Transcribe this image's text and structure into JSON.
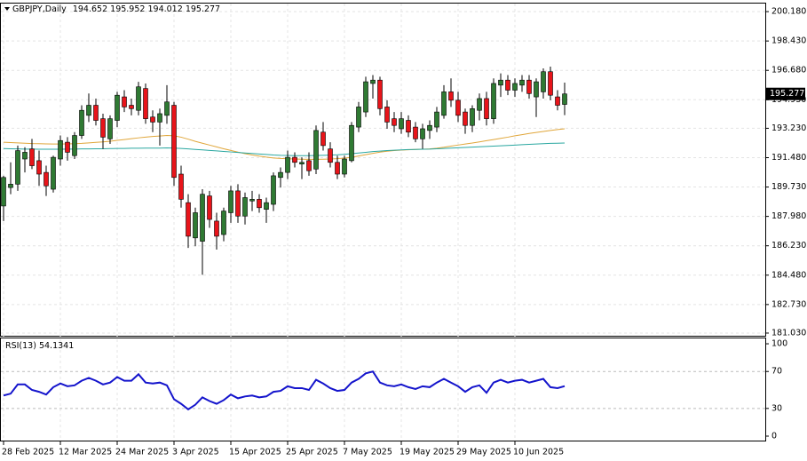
{
  "chart_data": [
    {
      "type": "candlestick",
      "title": "GBPJPY,Daily",
      "categories": [
        "28 Feb 2025",
        null,
        null,
        null,
        null,
        null,
        null,
        null,
        "12 Mar 2025",
        null,
        null,
        null,
        null,
        null,
        null,
        null,
        "24 Mar 2025",
        null,
        null,
        null,
        null,
        null,
        null,
        null,
        "3 Apr 2025",
        null,
        null,
        null,
        null,
        null,
        null,
        null,
        "15 Apr 2025",
        null,
        null,
        null,
        null,
        null,
        null,
        null,
        "25 Apr 2025",
        null,
        null,
        null,
        null,
        null,
        null,
        null,
        "7 May 2025",
        null,
        null,
        null,
        null,
        null,
        null,
        null,
        "19 May 2025",
        null,
        null,
        null,
        null,
        null,
        null,
        null,
        "29 May 2025",
        null,
        null,
        null,
        null,
        null,
        null,
        null,
        "10 Jun 2025",
        null,
        null,
        null,
        null,
        null,
        null,
        null
      ],
      "ohlc": {
        "open": [
          188.6,
          189.7,
          189.9,
          191.4,
          192.0,
          191.3,
          190.6,
          189.6,
          191.4,
          192.4,
          191.6,
          192.8,
          194.0,
          194.6,
          193.8,
          192.6,
          193.7,
          195.1,
          194.6,
          194.3,
          195.6,
          193.9,
          193.6,
          194.0,
          194.6,
          190.5,
          188.8,
          186.7,
          186.5,
          189.2,
          187.7,
          186.9,
          188.2,
          189.5,
          188.0,
          188.9,
          189.0,
          188.4,
          188.7,
          190.3,
          190.6,
          191.5,
          191.1,
          191.3,
          190.8,
          193.0,
          192.0,
          191.2,
          190.5,
          191.3,
          193.3,
          194.2,
          195.9,
          196.1,
          194.5,
          193.8,
          193.2,
          193.7,
          193.3,
          192.6,
          193.1,
          193.3,
          194.0,
          195.4,
          194.9,
          194.2,
          193.4,
          194.3,
          195.0,
          193.8,
          195.8,
          196.1,
          195.5,
          195.8,
          196.1,
          195.1,
          195.4,
          196.6,
          195.1,
          194.652
        ],
        "high": [
          190.4,
          191.2,
          192.2,
          192.1,
          192.6,
          191.9,
          191.0,
          191.6,
          192.8,
          192.7,
          193.0,
          194.6,
          195.3,
          195.0,
          194.1,
          194.0,
          195.4,
          195.5,
          195.0,
          196.0,
          195.9,
          194.3,
          194.4,
          195.8,
          194.8,
          191.0,
          189.3,
          188.5,
          189.6,
          189.5,
          188.2,
          188.5,
          189.8,
          189.9,
          189.4,
          189.5,
          189.3,
          189.1,
          190.6,
          190.9,
          191.9,
          191.8,
          191.5,
          191.8,
          193.4,
          193.6,
          192.4,
          191.6,
          191.6,
          193.6,
          194.8,
          196.3,
          196.4,
          196.3,
          194.9,
          194.2,
          194.2,
          194.0,
          193.6,
          193.5,
          193.7,
          194.5,
          195.8,
          196.2,
          195.4,
          194.4,
          194.6,
          195.3,
          195.4,
          196.2,
          196.5,
          196.4,
          196.2,
          196.4,
          196.4,
          196.2,
          196.8,
          196.9,
          195.5,
          195.952
        ],
        "low": [
          187.7,
          189.3,
          189.5,
          190.6,
          190.8,
          189.8,
          189.2,
          189.4,
          191.0,
          191.3,
          191.4,
          192.6,
          193.6,
          193.4,
          192.0,
          192.3,
          193.3,
          194.2,
          194.0,
          194.0,
          193.5,
          193.0,
          192.2,
          193.5,
          189.8,
          188.5,
          186.1,
          186.2,
          184.5,
          187.3,
          186.0,
          186.5,
          187.6,
          187.6,
          187.5,
          188.3,
          188.2,
          187.6,
          188.3,
          189.7,
          190.2,
          190.9,
          190.2,
          190.4,
          190.5,
          191.9,
          190.9,
          190.2,
          190.3,
          191.2,
          193.0,
          193.9,
          195.0,
          194.0,
          193.2,
          193.0,
          192.9,
          192.7,
          192.4,
          192.0,
          192.6,
          193.0,
          193.8,
          194.5,
          193.6,
          192.9,
          193.0,
          193.7,
          193.4,
          193.5,
          195.1,
          195.2,
          195.1,
          195.4,
          195.0,
          193.9,
          195.0,
          194.9,
          194.3,
          194.012
        ],
        "close": [
          190.3,
          189.9,
          191.9,
          191.8,
          191.0,
          190.5,
          189.8,
          191.5,
          192.5,
          191.8,
          192.8,
          194.3,
          194.6,
          193.7,
          192.7,
          193.8,
          195.2,
          194.5,
          194.4,
          195.7,
          193.8,
          193.6,
          194.1,
          194.8,
          190.3,
          189.0,
          186.8,
          188.2,
          189.3,
          187.8,
          186.8,
          188.3,
          189.5,
          188.0,
          189.1,
          189.0,
          188.5,
          188.8,
          190.4,
          190.6,
          191.5,
          191.2,
          191.2,
          190.7,
          193.1,
          192.2,
          191.2,
          190.5,
          191.4,
          193.4,
          194.5,
          196.0,
          196.1,
          194.4,
          193.6,
          193.4,
          193.8,
          193.0,
          192.6,
          193.2,
          193.4,
          194.2,
          195.4,
          194.9,
          194.0,
          193.4,
          194.4,
          195.0,
          193.8,
          195.9,
          196.1,
          195.5,
          195.9,
          196.1,
          195.3,
          196.0,
          196.6,
          195.2,
          194.6,
          195.277
        ]
      },
      "bull_color": "#2f7a33",
      "bear_color": "#e8141a",
      "lines": [
        {
          "color": "#e0a63a",
          "values": [
            192.4,
            192.38,
            192.36,
            192.34,
            192.32,
            192.31,
            192.3,
            192.29,
            192.29,
            192.3,
            192.31,
            192.33,
            192.36,
            192.39,
            192.42,
            192.46,
            192.51,
            192.56,
            192.61,
            192.66,
            192.7,
            192.74,
            192.77,
            192.8,
            192.78,
            192.7,
            192.58,
            192.45,
            192.34,
            192.23,
            192.12,
            192.01,
            191.91,
            191.81,
            191.72,
            191.64,
            191.57,
            191.51,
            191.46,
            191.43,
            191.41,
            191.4,
            191.39,
            191.38,
            191.38,
            191.39,
            191.4,
            191.42,
            191.45,
            191.5,
            191.58,
            191.66,
            191.74,
            191.81,
            191.86,
            191.9,
            191.93,
            191.95,
            191.97,
            191.98,
            192.0,
            192.04,
            192.1,
            192.17,
            192.23,
            192.29,
            192.35,
            192.42,
            192.49,
            192.56,
            192.63,
            192.7,
            192.78,
            192.85,
            192.92,
            192.98,
            193.04,
            193.1,
            193.15,
            193.2
          ]
        },
        {
          "color": "#2aa7a0",
          "values": [
            192.02,
            192.01,
            192.0,
            191.99,
            191.99,
            191.98,
            191.98,
            191.98,
            191.98,
            191.99,
            191.99,
            192.0,
            192.0,
            192.01,
            192.01,
            192.02,
            192.03,
            192.03,
            192.04,
            192.04,
            192.05,
            192.05,
            192.05,
            192.06,
            192.05,
            192.03,
            192.0,
            191.97,
            191.94,
            191.91,
            191.88,
            191.85,
            191.82,
            191.79,
            191.76,
            191.73,
            191.7,
            191.67,
            191.64,
            191.62,
            191.61,
            191.6,
            191.6,
            191.6,
            191.61,
            191.62,
            191.63,
            191.65,
            191.68,
            191.72,
            191.76,
            191.8,
            191.84,
            191.87,
            191.9,
            191.92,
            191.94,
            191.96,
            191.97,
            191.98,
            191.99,
            192.01,
            192.03,
            192.05,
            192.07,
            192.09,
            192.11,
            192.13,
            192.15,
            192.17,
            192.19,
            192.21,
            192.23,
            192.25,
            192.27,
            192.29,
            192.31,
            192.33,
            192.34,
            192.35
          ]
        }
      ],
      "ylim": [
        180.87,
        200.66
      ],
      "yticks": [
        {
          "value": 200.18,
          "label": "200.180"
        },
        {
          "value": 198.43,
          "label": "198.430"
        },
        {
          "value": 196.68,
          "label": "196.680"
        },
        {
          "value": 194.93,
          "label": "194.930"
        },
        {
          "value": 193.23,
          "label": "193.230"
        },
        {
          "value": 191.48,
          "label": "191.480"
        },
        {
          "value": 189.73,
          "label": "189.730"
        },
        {
          "value": 187.98,
          "label": "187.980"
        },
        {
          "value": 186.23,
          "label": "186.230"
        },
        {
          "value": 184.48,
          "label": "184.480"
        },
        {
          "value": 182.73,
          "label": "182.730"
        },
        {
          "value": 181.03,
          "label": "181.030"
        }
      ],
      "grid": true
    },
    {
      "type": "line",
      "title": "RSI(13)",
      "series": [
        {
          "color": "#1414cc",
          "values": [
            44,
            46,
            56,
            56,
            50,
            48,
            45,
            53,
            57,
            54,
            55,
            60,
            63,
            60,
            56,
            58,
            64,
            60,
            60,
            67,
            58,
            57,
            58,
            55,
            40,
            35,
            29,
            34,
            42,
            38,
            35,
            39,
            45,
            41,
            43,
            44,
            42,
            43,
            48,
            49,
            54,
            52,
            52,
            50,
            61,
            57,
            52,
            49,
            50,
            58,
            62,
            68,
            70,
            58,
            55,
            54,
            56,
            53,
            51,
            54,
            53,
            58,
            62,
            58,
            54,
            48,
            53,
            55,
            47,
            58,
            61,
            58,
            60,
            61,
            58,
            60,
            62,
            53,
            52,
            54.1341
          ]
        }
      ],
      "ylim": [
        -4.8,
        105.8
      ],
      "yticks": [
        100,
        70,
        30,
        0
      ]
    }
  ]
}
